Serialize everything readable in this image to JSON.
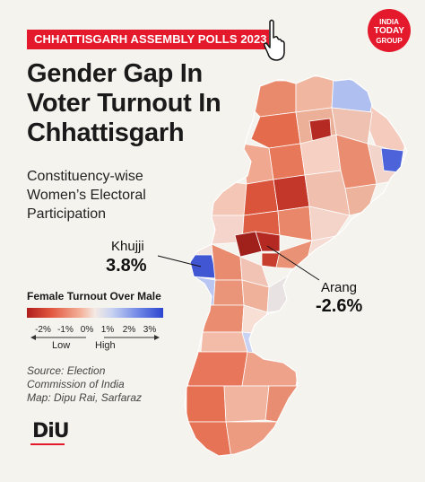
{
  "banner": {
    "text": "CHHATTISGARH ASSEMBLY POLLS 2023",
    "color": "#e5192c"
  },
  "brand_logo": {
    "line1": "INDIA",
    "line2": "TODAY",
    "line3": "GROUP",
    "color": "#e5192c"
  },
  "title": {
    "line1": "Gender Gap In",
    "line2": "Voter Turnout In",
    "line3": "Chhattisgarh"
  },
  "subtitle": {
    "line1": "Constituency-wise",
    "line2": "Women’s Electoral",
    "line3": "Participation"
  },
  "callouts": {
    "khujji": {
      "name": "Khujji",
      "value": "3.8%"
    },
    "arang": {
      "name": "Arang",
      "value": "-2.6%"
    }
  },
  "legend": {
    "title": "Female Turnout Over Male",
    "ticks": [
      "-2%",
      "-1%",
      "0%",
      "1%",
      "2%",
      "3%"
    ],
    "low": "Low",
    "high": "High",
    "colors": {
      "negative": "#b01e1c",
      "neutral": "#f3e9e4",
      "positive": "#2d45cf"
    }
  },
  "source": {
    "line1": "Source: Election",
    "line2": "Commission of India",
    "line3": "Map: Dipu Rai, Sarfaraz"
  },
  "footer_logo": {
    "text": "DiU"
  }
}
